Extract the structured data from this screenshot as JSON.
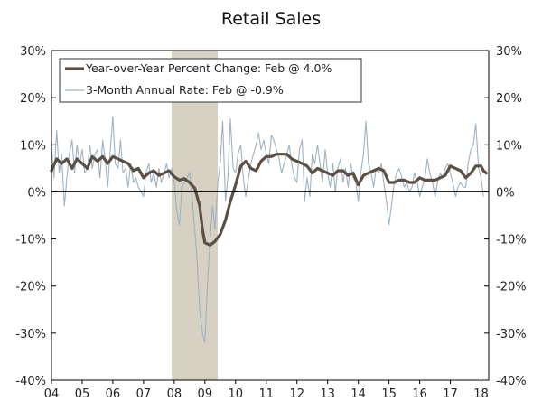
{
  "chart_data": {
    "type": "line",
    "title": "Retail Sales",
    "xlabel": "",
    "ylabel": "",
    "x_tick_labels": [
      "04",
      "05",
      "06",
      "07",
      "08",
      "09",
      "10",
      "11",
      "12",
      "13",
      "14",
      "15",
      "16",
      "17",
      "18"
    ],
    "x_range": [
      2004.0,
      2018.25
    ],
    "ylim": [
      -40,
      30
    ],
    "y_ticks": [
      30,
      20,
      10,
      0,
      -10,
      -20,
      -30,
      -40
    ],
    "y_tick_labels": [
      "30%",
      "20%",
      "10%",
      "0%",
      "-10%",
      "-20%",
      "-30%",
      "-40%"
    ],
    "grid": false,
    "legend_position": "top-left",
    "recession_shading": {
      "start": "2007-12",
      "end": "2009-06"
    },
    "series": [
      {
        "name": "Year-over-Year Percent Change: Feb @ 4.0%",
        "color": "#5a5046",
        "style": "thick",
        "points": [
          [
            2004.0,
            4.5
          ],
          [
            2004.17,
            7
          ],
          [
            2004.33,
            6
          ],
          [
            2004.5,
            7
          ],
          [
            2004.67,
            5
          ],
          [
            2004.83,
            7
          ],
          [
            2005.0,
            6
          ],
          [
            2005.17,
            5
          ],
          [
            2005.33,
            7.5
          ],
          [
            2005.5,
            6.5
          ],
          [
            2005.67,
            7.5
          ],
          [
            2005.83,
            6
          ],
          [
            2006.0,
            7.5
          ],
          [
            2006.17,
            7
          ],
          [
            2006.33,
            6.5
          ],
          [
            2006.5,
            6
          ],
          [
            2006.67,
            4.5
          ],
          [
            2006.83,
            5
          ],
          [
            2007.0,
            3
          ],
          [
            2007.17,
            4
          ],
          [
            2007.33,
            4.5
          ],
          [
            2007.5,
            3.5
          ],
          [
            2007.67,
            4
          ],
          [
            2007.83,
            4.5
          ],
          [
            2008.0,
            3.2
          ],
          [
            2008.17,
            2.5
          ],
          [
            2008.33,
            2.8
          ],
          [
            2008.5,
            2
          ],
          [
            2008.67,
            0.8
          ],
          [
            2008.83,
            -3
          ],
          [
            2008.92,
            -8
          ],
          [
            2009.0,
            -10.8
          ],
          [
            2009.17,
            -11.3
          ],
          [
            2009.33,
            -10.5
          ],
          [
            2009.5,
            -9
          ],
          [
            2009.67,
            -6
          ],
          [
            2009.83,
            -2
          ],
          [
            2010.0,
            1.5
          ],
          [
            2010.17,
            5.5
          ],
          [
            2010.33,
            6.5
          ],
          [
            2010.5,
            5
          ],
          [
            2010.67,
            4.5
          ],
          [
            2010.83,
            6.5
          ],
          [
            2011.0,
            7.5
          ],
          [
            2011.17,
            7.5
          ],
          [
            2011.33,
            8
          ],
          [
            2011.5,
            8
          ],
          [
            2011.67,
            8
          ],
          [
            2011.83,
            7
          ],
          [
            2012.0,
            6.5
          ],
          [
            2012.17,
            6
          ],
          [
            2012.33,
            5.5
          ],
          [
            2012.5,
            4
          ],
          [
            2012.67,
            5
          ],
          [
            2012.83,
            4.5
          ],
          [
            2013.0,
            4
          ],
          [
            2013.17,
            3.5
          ],
          [
            2013.33,
            4.5
          ],
          [
            2013.5,
            4.5
          ],
          [
            2013.67,
            3.5
          ],
          [
            2013.83,
            4
          ],
          [
            2014.0,
            1.5
          ],
          [
            2014.17,
            3.5
          ],
          [
            2014.33,
            4
          ],
          [
            2014.5,
            4.5
          ],
          [
            2014.67,
            5
          ],
          [
            2014.83,
            4.5
          ],
          [
            2015.0,
            2
          ],
          [
            2015.17,
            2
          ],
          [
            2015.33,
            2.5
          ],
          [
            2015.5,
            2.5
          ],
          [
            2015.67,
            2
          ],
          [
            2015.83,
            2
          ],
          [
            2016.0,
            3
          ],
          [
            2016.17,
            2.5
          ],
          [
            2016.33,
            2.5
          ],
          [
            2016.5,
            2.5
          ],
          [
            2016.67,
            3
          ],
          [
            2016.83,
            3.5
          ],
          [
            2017.0,
            5.5
          ],
          [
            2017.17,
            5
          ],
          [
            2017.33,
            4.5
          ],
          [
            2017.5,
            3
          ],
          [
            2017.67,
            4
          ],
          [
            2017.83,
            5.5
          ],
          [
            2018.0,
            5.5
          ],
          [
            2018.08,
            4.5
          ],
          [
            2018.17,
            4.0
          ]
        ]
      },
      {
        "name": "3-Month Annual Rate: Feb @ -0.9%",
        "color": "#9fb2c0",
        "style": "thin",
        "points": [
          [
            2004.0,
            10
          ],
          [
            2004.08,
            3
          ],
          [
            2004.17,
            13
          ],
          [
            2004.25,
            4
          ],
          [
            2004.33,
            8
          ],
          [
            2004.42,
            -3
          ],
          [
            2004.5,
            3
          ],
          [
            2004.58,
            8
          ],
          [
            2004.67,
            11
          ],
          [
            2004.75,
            4
          ],
          [
            2004.83,
            10
          ],
          [
            2004.92,
            6
          ],
          [
            2005.0,
            9
          ],
          [
            2005.08,
            4
          ],
          [
            2005.17,
            5
          ],
          [
            2005.25,
            10
          ],
          [
            2005.33,
            5
          ],
          [
            2005.42,
            8
          ],
          [
            2005.5,
            9
          ],
          [
            2005.58,
            3
          ],
          [
            2005.67,
            11
          ],
          [
            2005.75,
            7
          ],
          [
            2005.83,
            1
          ],
          [
            2005.92,
            9
          ],
          [
            2006.0,
            16
          ],
          [
            2006.08,
            6
          ],
          [
            2006.17,
            5
          ],
          [
            2006.25,
            11
          ],
          [
            2006.33,
            4
          ],
          [
            2006.42,
            5
          ],
          [
            2006.5,
            1
          ],
          [
            2006.58,
            6
          ],
          [
            2006.67,
            2
          ],
          [
            2006.75,
            3
          ],
          [
            2006.83,
            1
          ],
          [
            2006.92,
            0
          ],
          [
            2007.0,
            -1
          ],
          [
            2007.08,
            4
          ],
          [
            2007.17,
            6
          ],
          [
            2007.25,
            2
          ],
          [
            2007.33,
            4
          ],
          [
            2007.42,
            1
          ],
          [
            2007.5,
            5
          ],
          [
            2007.58,
            2
          ],
          [
            2007.67,
            4
          ],
          [
            2007.75,
            6
          ],
          [
            2007.83,
            3
          ],
          [
            2007.92,
            5
          ],
          [
            2008.0,
            2
          ],
          [
            2008.08,
            -4
          ],
          [
            2008.17,
            -7
          ],
          [
            2008.25,
            1
          ],
          [
            2008.33,
            2
          ],
          [
            2008.42,
            3
          ],
          [
            2008.5,
            4
          ],
          [
            2008.58,
            -1
          ],
          [
            2008.67,
            -8
          ],
          [
            2008.75,
            -15
          ],
          [
            2008.83,
            -25
          ],
          [
            2008.92,
            -30
          ],
          [
            2009.0,
            -32
          ],
          [
            2009.08,
            -20
          ],
          [
            2009.17,
            -10
          ],
          [
            2009.25,
            -3
          ],
          [
            2009.33,
            -8
          ],
          [
            2009.42,
            2
          ],
          [
            2009.5,
            6
          ],
          [
            2009.58,
            15
          ],
          [
            2009.67,
            -2
          ],
          [
            2009.75,
            3
          ],
          [
            2009.83,
            15.5
          ],
          [
            2009.92,
            5
          ],
          [
            2010.0,
            4
          ],
          [
            2010.08,
            8
          ],
          [
            2010.17,
            10
          ],
          [
            2010.25,
            3
          ],
          [
            2010.33,
            -1
          ],
          [
            2010.42,
            3
          ],
          [
            2010.5,
            6
          ],
          [
            2010.58,
            8
          ],
          [
            2010.67,
            10
          ],
          [
            2010.75,
            12.5
          ],
          [
            2010.83,
            9
          ],
          [
            2010.92,
            11
          ],
          [
            2011.0,
            8
          ],
          [
            2011.08,
            6
          ],
          [
            2011.17,
            12
          ],
          [
            2011.25,
            11
          ],
          [
            2011.33,
            9
          ],
          [
            2011.42,
            7
          ],
          [
            2011.5,
            4
          ],
          [
            2011.58,
            6
          ],
          [
            2011.67,
            8
          ],
          [
            2011.75,
            10
          ],
          [
            2011.83,
            6
          ],
          [
            2011.92,
            3
          ],
          [
            2012.0,
            2
          ],
          [
            2012.08,
            9
          ],
          [
            2012.17,
            11
          ],
          [
            2012.25,
            -2
          ],
          [
            2012.33,
            3
          ],
          [
            2012.42,
            -1
          ],
          [
            2012.5,
            8
          ],
          [
            2012.58,
            6
          ],
          [
            2012.67,
            10
          ],
          [
            2012.75,
            6
          ],
          [
            2012.83,
            2
          ],
          [
            2012.92,
            9
          ],
          [
            2013.0,
            4
          ],
          [
            2013.08,
            1
          ],
          [
            2013.17,
            6
          ],
          [
            2013.25,
            0
          ],
          [
            2013.33,
            5
          ],
          [
            2013.42,
            7
          ],
          [
            2013.5,
            2
          ],
          [
            2013.58,
            5
          ],
          [
            2013.67,
            1
          ],
          [
            2013.75,
            6
          ],
          [
            2013.83,
            3
          ],
          [
            2013.92,
            2
          ],
          [
            2014.0,
            -2
          ],
          [
            2014.08,
            4
          ],
          [
            2014.17,
            8
          ],
          [
            2014.25,
            15
          ],
          [
            2014.33,
            6
          ],
          [
            2014.42,
            4
          ],
          [
            2014.5,
            1
          ],
          [
            2014.58,
            5
          ],
          [
            2014.67,
            4
          ],
          [
            2014.75,
            6
          ],
          [
            2014.83,
            2
          ],
          [
            2014.92,
            -2
          ],
          [
            2015.0,
            -7
          ],
          [
            2015.08,
            -3
          ],
          [
            2015.17,
            2
          ],
          [
            2015.25,
            4
          ],
          [
            2015.33,
            5
          ],
          [
            2015.42,
            3
          ],
          [
            2015.5,
            1
          ],
          [
            2015.58,
            2
          ],
          [
            2015.67,
            0
          ],
          [
            2015.75,
            1
          ],
          [
            2015.83,
            4
          ],
          [
            2015.92,
            2
          ],
          [
            2016.0,
            -1
          ],
          [
            2016.08,
            1
          ],
          [
            2016.17,
            3
          ],
          [
            2016.25,
            7
          ],
          [
            2016.33,
            4
          ],
          [
            2016.42,
            2
          ],
          [
            2016.5,
            -1
          ],
          [
            2016.58,
            2
          ],
          [
            2016.67,
            4
          ],
          [
            2016.75,
            3
          ],
          [
            2016.83,
            5
          ],
          [
            2016.92,
            6
          ],
          [
            2017.0,
            4
          ],
          [
            2017.08,
            2
          ],
          [
            2017.17,
            -1
          ],
          [
            2017.25,
            1
          ],
          [
            2017.33,
            2
          ],
          [
            2017.42,
            1
          ],
          [
            2017.5,
            1
          ],
          [
            2017.58,
            6
          ],
          [
            2017.67,
            9
          ],
          [
            2017.75,
            10
          ],
          [
            2017.83,
            14.5
          ],
          [
            2017.92,
            5
          ],
          [
            2018.0,
            3
          ],
          [
            2018.08,
            -0.9
          ]
        ]
      }
    ]
  }
}
